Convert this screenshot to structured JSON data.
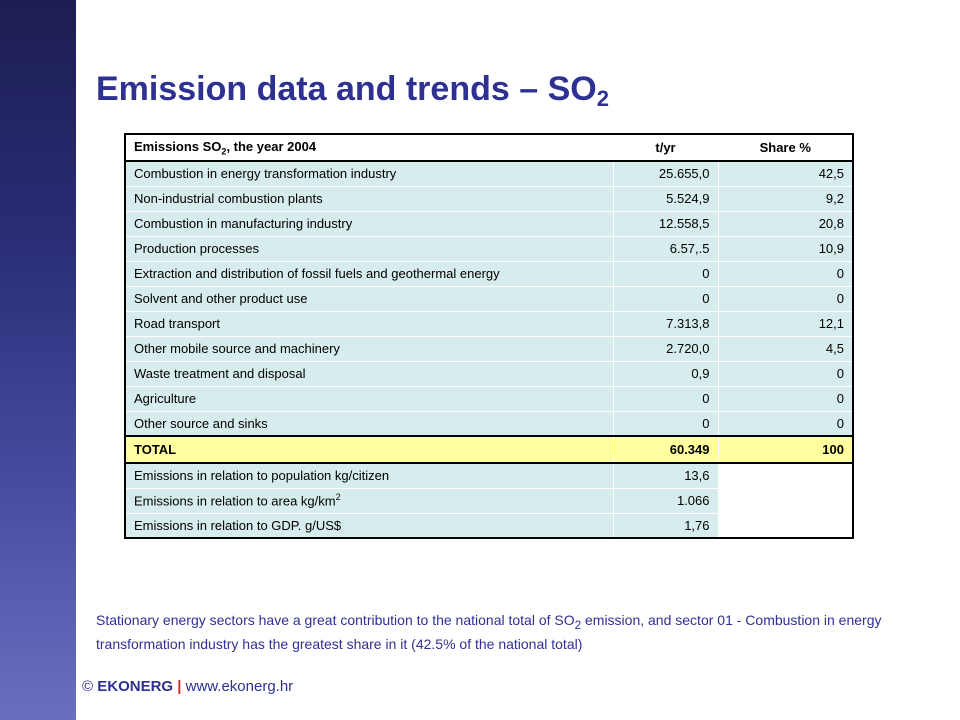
{
  "slide": {
    "title_main": "Emission data and trends – SO",
    "title_sub": "2"
  },
  "table": {
    "header": {
      "label_main": "Emissions SO",
      "label_sub": "2",
      "label_rest": ", the year 2004",
      "col_tyr": "t/yr",
      "col_share": "Share %"
    },
    "rows": [
      {
        "label": "Combustion in  energy transformation industry",
        "tyr": "25.655,0",
        "share": "42,5"
      },
      {
        "label": "Non-industrial combustion plants",
        "tyr": "5.524,9",
        "share": "9,2"
      },
      {
        "label": "Combustion in manufacturing industry",
        "tyr": "12.558,5",
        "share": "20,8"
      },
      {
        "label": "Production processes",
        "tyr": "6.57,.5",
        "share": "10,9"
      },
      {
        "label": "Extraction and distribution of fossil fuels and geothermal energy",
        "tyr": "0",
        "share": "0"
      },
      {
        "label": "Solvent and other product use",
        "tyr": "0",
        "share": "0"
      },
      {
        "label": "Road transport",
        "tyr": "7.313,8",
        "share": "12,1"
      },
      {
        "label": "Other mobile source and machinery",
        "tyr": "2.720,0",
        "share": "4,5"
      },
      {
        "label": "Waste treatment and disposal",
        "tyr": "0,9",
        "share": "0"
      },
      {
        "label": "Agriculture",
        "tyr": "0",
        "share": "0"
      },
      {
        "label": "Other source and sinks",
        "tyr": "0",
        "share": "0"
      }
    ],
    "total": {
      "label": "TOTAL",
      "tyr": "60.349",
      "share": "100"
    },
    "relations": {
      "population": {
        "label": "Emissions in relation to population  kg/citizen",
        "value": "13,6"
      },
      "area": {
        "label_main": "Emissions in relation to area  kg/km",
        "label_sup": "2",
        "value": "1.066"
      },
      "gdp": {
        "label": "Emissions in relation to GDP.  g/US$",
        "value": "1,76"
      }
    }
  },
  "note": {
    "part1": "Stationary energy sectors have a great contribution to the national total of SO",
    "sub": "2",
    "part2": " emission, and sector 01 - Combustion in energy transformation industry has the greatest share in it (42.5% of the national total)"
  },
  "footer": {
    "copyright": "©",
    "brand": "EKONERG",
    "separator": "|",
    "url": "www.ekonerg.hr"
  },
  "colors": {
    "title": "#2e3192",
    "row_fill": "#d7ecec",
    "total_fill": "#ffffa0",
    "separator": "#d42a2a"
  }
}
